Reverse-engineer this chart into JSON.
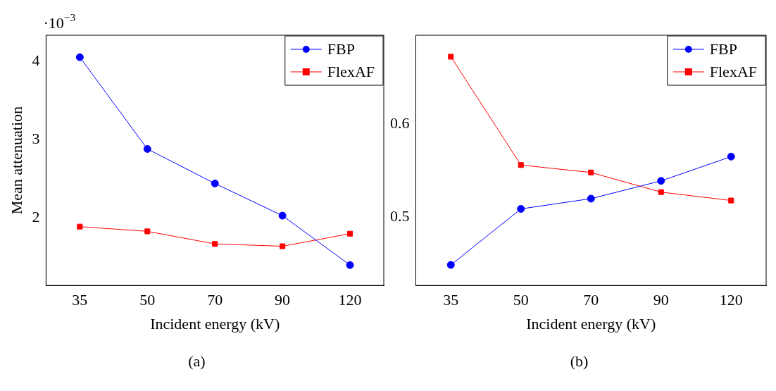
{
  "chart_data": [
    {
      "type": "line",
      "title": "(a)",
      "xlabel": "Incident energy (kV)",
      "ylabel": "Mean attenuation",
      "annotations": [
        "·10$^{−3}$"
      ],
      "categories": [
        "35",
        "50",
        "70",
        "90",
        "120"
      ],
      "series": [
        {
          "name": "FBP",
          "color": "#0000ff",
          "marker": "circle",
          "values": [
            4.05,
            2.88,
            2.44,
            2.03,
            1.4
          ]
        },
        {
          "name": "FlexAF",
          "color": "#ff0000",
          "marker": "square",
          "values": [
            1.89,
            1.83,
            1.67,
            1.64,
            1.8
          ]
        }
      ],
      "ylim": [
        1.14,
        4.33
      ],
      "yticks": [
        2,
        3,
        4
      ],
      "grid": false,
      "legend": "top right"
    },
    {
      "type": "line",
      "title": "(b)",
      "xlabel": "Incident energy (kV)",
      "categories": [
        "35",
        "50",
        "70",
        "90",
        "120"
      ],
      "series": [
        {
          "name": "FBP",
          "color": "#0000ff",
          "marker": "circle",
          "values": [
            0.449,
            0.509,
            0.52,
            0.539,
            0.565
          ]
        },
        {
          "name": "FlexAF",
          "color": "#ff0000",
          "marker": "square",
          "values": [
            0.672,
            0.556,
            0.548,
            0.527,
            0.518
          ]
        }
      ],
      "ylim": [
        0.427,
        0.695
      ],
      "yticks": [
        0.5,
        0.6
      ],
      "grid": false,
      "legend": "top right"
    }
  ]
}
